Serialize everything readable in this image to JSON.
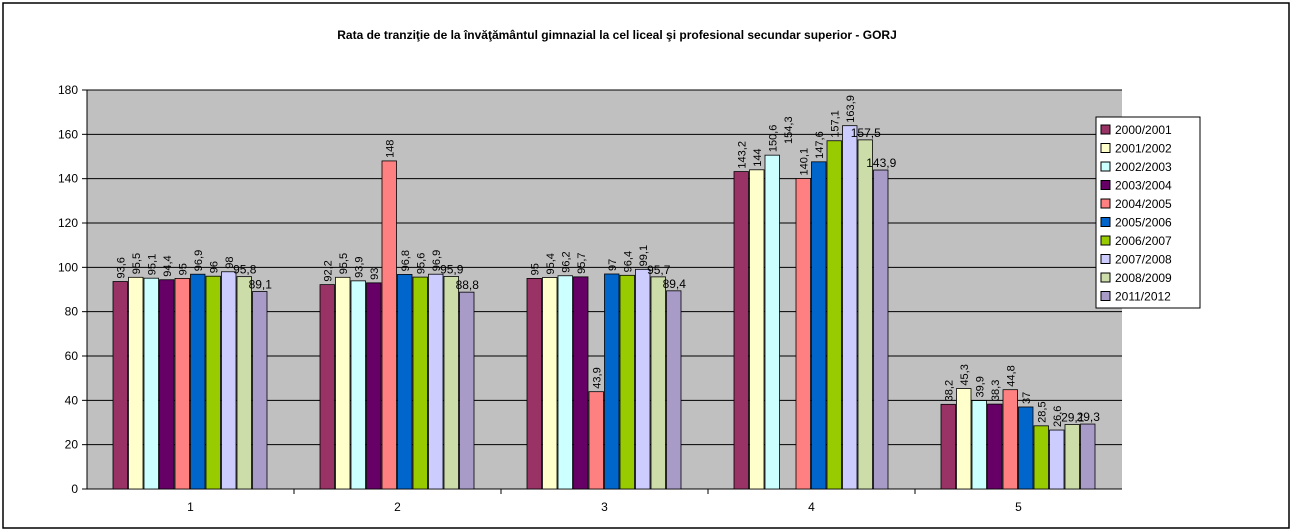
{
  "chart_data": {
    "type": "bar",
    "title": "Rata de tranziţie de la  învăţământul gimnazial la cel liceal şi profesional secundar superior - GORJ",
    "xlabel": "",
    "ylabel": "",
    "ylim": [
      0,
      180
    ],
    "yticks": [
      0,
      20,
      40,
      60,
      80,
      100,
      120,
      140,
      160,
      180
    ],
    "grid": true,
    "legend_position": "right",
    "categories": [
      "1",
      "2",
      "3",
      "4",
      "5"
    ],
    "series": [
      {
        "name": "2000/2001",
        "color": "#993366",
        "values": [
          93.6,
          92.2,
          95,
          143.2,
          38.2
        ],
        "labels": [
          "93,6",
          "92,2",
          "95",
          "143,2",
          "38,2"
        ]
      },
      {
        "name": "2001/2002",
        "color": "#FFFFCC",
        "values": [
          95.5,
          95.5,
          95.4,
          144,
          45.3
        ],
        "labels": [
          "95,5",
          "95,5",
          "95,4",
          "144",
          "45,3"
        ]
      },
      {
        "name": "2002/2003",
        "color": "#CCFFFF",
        "values": [
          95.1,
          93.9,
          96.2,
          150.6,
          39.9
        ],
        "labels": [
          "95,1",
          "93,9",
          "96,2",
          "150,6",
          "39,9"
        ]
      },
      {
        "name": "2003/2004",
        "color": "#660066",
        "values": [
          94.4,
          93,
          95.7,
          null,
          38.3
        ],
        "labels": [
          "94,4",
          "93",
          "95,7",
          "154,3",
          "38,3"
        ]
      },
      {
        "name": "2004/2005",
        "color": "#FF8080",
        "values": [
          95,
          148,
          43.9,
          140.1,
          44.8
        ],
        "labels": [
          "95",
          "148",
          "43,9",
          "140,1",
          "44,8"
        ]
      },
      {
        "name": "2005/2006",
        "color": "#0066CC",
        "values": [
          96.9,
          96.8,
          97,
          147.6,
          37
        ],
        "labels": [
          "96,9",
          "96,8",
          "97",
          "147,6",
          "37"
        ]
      },
      {
        "name": "2006/2007",
        "color": "#99CC00",
        "values": [
          96,
          95.6,
          96.4,
          157.1,
          28.5
        ],
        "labels": [
          "96",
          "95,6",
          "96,4",
          "157,1",
          "28,5"
        ]
      },
      {
        "name": "2007/2008",
        "color": "#CCCCFF",
        "values": [
          98,
          96.9,
          99.1,
          163.9,
          26.6
        ],
        "labels": [
          "98",
          "96,9",
          "99,1",
          "163,9",
          "26,6"
        ]
      },
      {
        "name": "2008/2009",
        "color": "#CCDDAA",
        "values": [
          95.8,
          95.9,
          95.7,
          157.5,
          29.1
        ],
        "labels": [
          "95,8",
          "95,9",
          "95,7",
          "157,5",
          "29,1"
        ]
      },
      {
        "name": "2011/2012",
        "color": "#A99BC7",
        "values": [
          89.1,
          88.8,
          89.4,
          143.9,
          29.3
        ],
        "labels": [
          "89,1",
          "88,8",
          "89,4",
          "143,9",
          "29,3"
        ]
      }
    ],
    "colors": {
      "plot_background": "#C0C0C0",
      "gridline": "#000000",
      "frame": "#000000"
    }
  }
}
